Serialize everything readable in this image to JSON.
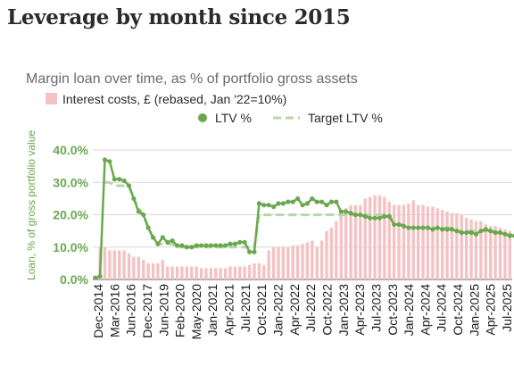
{
  "title": "Leverage by month since 2015",
  "chart_data": {
    "type": "bar",
    "subtitle": "Margin loan over time, as % of portfolio gross assets",
    "ylabel": "Loan, % of gross portfolio value",
    "xlabel": "",
    "ylim": [
      0,
      45
    ],
    "yticks": [
      "0.0%",
      "10.0%",
      "20.0%",
      "30.0%",
      "40.0%"
    ],
    "ytick_values": [
      0,
      10,
      20,
      30,
      40
    ],
    "grid": true,
    "legend_placement": "top",
    "x_tick_labels": [
      "Dec-2014",
      "Mar-2016",
      "Jun-2016",
      "Dec-2017",
      "Jun-2019",
      "Feb-2020",
      "May-2020",
      "Jan-2021",
      "Apr-2021",
      "Jul-2021",
      "Oct-2021",
      "Jan-2022",
      "Apr-2022",
      "Jul-2022",
      "Oct-2022",
      "Jan-2023",
      "Apr-2023",
      "Jul-2023",
      "Oct-2023",
      "Jan-2024",
      "Apr-2024",
      "Jul-2024",
      "Oct-2024",
      "Jan-2025",
      "Apr-2025",
      "Jul-2025"
    ],
    "colors": {
      "bars": "#f4c2c2",
      "ltv": "#6aa84f",
      "target": "#b6d7a8",
      "axis_text": "#6aa84f",
      "grid": "#d9d9d9"
    },
    "series": [
      {
        "name": "Interest costs, £ (rebased, Jan '22=10%)",
        "kind": "bar",
        "values": [
          0.5,
          10,
          10,
          9,
          9,
          9,
          9,
          8,
          7,
          7,
          6,
          5,
          5,
          5,
          6,
          4,
          4,
          4,
          4,
          4,
          4,
          4,
          3.5,
          3.5,
          3.5,
          3.5,
          3.5,
          3.5,
          4,
          4,
          4,
          4,
          4.5,
          5,
          5,
          4.5,
          9,
          10,
          10,
          10,
          10,
          10.5,
          10.5,
          11,
          11.5,
          12,
          10,
          12,
          15,
          16,
          18,
          21,
          22,
          23,
          23,
          23,
          25,
          25.5,
          26,
          26,
          25.5,
          24,
          23,
          23,
          23,
          23.5,
          24.5,
          23,
          23,
          22.5,
          22.5,
          22,
          21.5,
          21,
          20.5,
          20.5,
          20,
          19,
          18.5,
          18,
          18,
          17,
          16.5,
          16.5,
          16,
          15.5,
          15
        ]
      },
      {
        "name": "LTV %",
        "kind": "line",
        "marker": "circle",
        "values": [
          0.5,
          1,
          37,
          36.5,
          31,
          31,
          30.5,
          29,
          25,
          21,
          20,
          16,
          13,
          11,
          13,
          11.5,
          12,
          10.5,
          10.5,
          10,
          10,
          10.5,
          10.5,
          10.5,
          10.5,
          10.5,
          10.5,
          10.5,
          11,
          11,
          11.5,
          11.5,
          8.5,
          8.5,
          23.5,
          23,
          23,
          22.5,
          23.5,
          23.5,
          24,
          24,
          25,
          23,
          23.5,
          25,
          24,
          24,
          23,
          24,
          24,
          21,
          21,
          20.5,
          20,
          20,
          19.5,
          19,
          19,
          19,
          19.5,
          19.5,
          17,
          17,
          16.5,
          16,
          16,
          16,
          16,
          16,
          15.5,
          16,
          15.5,
          15.5,
          15.5,
          15,
          14.5,
          14.5,
          14.5,
          14,
          15,
          15.5,
          15,
          14.5,
          14.5,
          14,
          13.5,
          13.5
        ]
      },
      {
        "name": "Target LTV %",
        "kind": "line",
        "style": "dashed",
        "values": [
          null,
          null,
          30,
          30,
          29,
          29,
          29,
          29,
          25,
          22,
          20,
          16,
          13,
          11,
          11,
          11,
          11,
          10,
          10,
          10,
          10,
          10,
          10,
          10,
          10,
          10,
          10,
          10,
          10,
          10,
          10,
          10,
          10,
          10,
          20,
          20,
          20,
          20,
          20,
          20,
          20,
          20,
          20,
          20,
          20,
          20,
          20,
          20,
          20,
          20,
          20,
          20,
          20,
          20,
          20,
          20,
          20,
          20,
          20,
          20,
          20,
          20,
          17,
          17,
          17,
          16,
          16,
          16,
          16,
          16,
          16,
          16,
          16,
          16,
          16,
          15,
          15,
          15,
          15,
          15,
          15,
          15,
          15,
          15,
          14,
          14,
          14,
          14,
          14
        ]
      }
    ]
  }
}
